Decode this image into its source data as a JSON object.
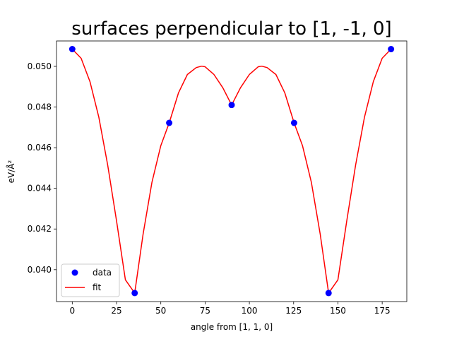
{
  "chart_data": {
    "type": "scatter",
    "title": "surfaces perpendicular to [1, -1, 0]",
    "xlabel": "angle from [1, 1, 0]",
    "ylabel": "eV/Å²",
    "xlim": [
      -8.9,
      188.9
    ],
    "ylim": [
      0.03843,
      0.05125
    ],
    "xticks": [
      0,
      25,
      50,
      75,
      100,
      125,
      150,
      175
    ],
    "yticks": [
      0.04,
      0.042,
      0.044,
      0.046,
      0.048,
      0.05
    ],
    "ytick_labels": [
      "0.040",
      "0.042",
      "0.044",
      "0.046",
      "0.048",
      "0.050"
    ],
    "grid": false,
    "legend_position": "lower-left",
    "series": [
      {
        "name": "data",
        "kind": "markers",
        "color": "#0000ff",
        "x": [
          0,
          35.26,
          54.74,
          90,
          125.26,
          144.74,
          180
        ],
        "y": [
          0.05085,
          0.03885,
          0.04722,
          0.0481,
          0.04722,
          0.03885,
          0.05085
        ]
      },
      {
        "name": "fit",
        "kind": "line",
        "color": "#ff0000",
        "x": [
          0,
          5,
          10,
          15,
          20,
          25,
          30,
          35.26,
          40,
          45,
          50,
          54.74,
          60,
          65,
          70,
          73,
          75,
          80,
          85,
          90,
          95,
          100,
          105,
          107,
          110,
          115,
          120,
          125.26,
          130,
          135,
          140,
          144.74,
          150,
          155,
          160,
          165,
          170,
          175,
          180
        ],
        "y": [
          0.05085,
          0.0504,
          0.04925,
          0.0475,
          0.04515,
          0.0424,
          0.0395,
          0.03885,
          0.04175,
          0.0443,
          0.0461,
          0.04722,
          0.0487,
          0.0496,
          0.04994,
          0.05001,
          0.04998,
          0.0496,
          0.04895,
          0.0481,
          0.04895,
          0.0496,
          0.04998,
          0.05001,
          0.04994,
          0.0496,
          0.0487,
          0.04722,
          0.0461,
          0.0443,
          0.04175,
          0.03885,
          0.0395,
          0.0424,
          0.04515,
          0.0475,
          0.04925,
          0.0504,
          0.05085
        ]
      }
    ]
  }
}
